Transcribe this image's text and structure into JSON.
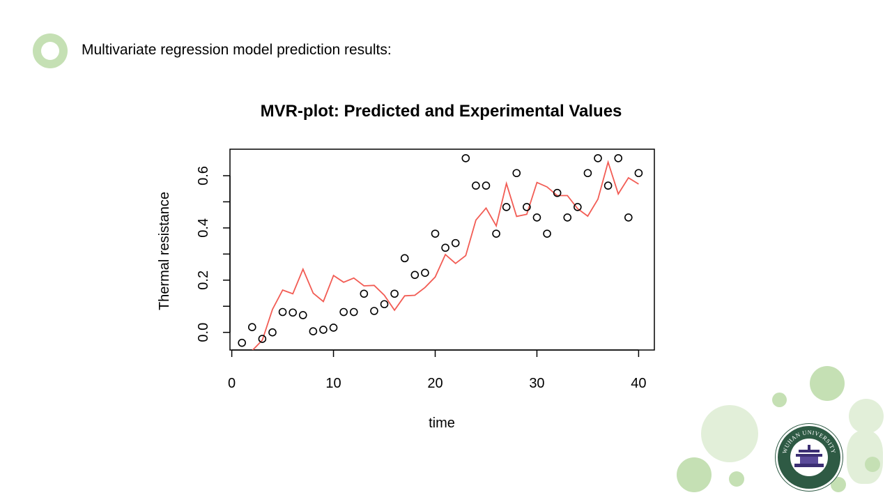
{
  "slide": {
    "heading": "Multivariate regression model prediction results:",
    "logo_text": "WUHAN UNIVERSITY",
    "colors": {
      "bullet": "#c5e0b4",
      "bubble_light": "#e2efd9",
      "bubble_mid": "#c5e0b4",
      "logo": "#2e5a44"
    }
  },
  "chart_data": {
    "type": "scatter",
    "title": "MVR-plot: Predicted and Experimental Values",
    "xlabel": "time",
    "ylabel": "Thermal resistance",
    "xlim": [
      0,
      42
    ],
    "ylim": [
      -0.07,
      0.7
    ],
    "x_ticks": [
      0,
      10,
      20,
      30,
      40
    ],
    "y_ticks": [
      0.0,
      0.2,
      0.4,
      0.6
    ],
    "y_tick_labels": [
      "0.0",
      "0.2",
      "0.4",
      "0.6"
    ],
    "grid": false,
    "series": [
      {
        "kind": "points",
        "color": "#000000",
        "x": [
          1,
          2,
          3,
          4,
          5,
          6,
          7,
          8,
          9,
          10,
          11,
          12,
          13,
          14,
          15,
          16,
          17,
          18,
          19,
          20,
          21,
          22,
          23,
          24,
          25,
          26,
          27,
          28,
          29,
          30,
          31,
          32,
          33,
          34,
          35,
          36,
          37,
          38,
          39,
          40
        ],
        "values": [
          -0.04,
          0.02,
          -0.025,
          0.0,
          0.078,
          0.076,
          0.066,
          0.004,
          0.01,
          0.018,
          0.078,
          0.078,
          0.148,
          0.082,
          0.108,
          0.148,
          0.284,
          0.22,
          0.228,
          0.378,
          0.324,
          0.342,
          0.667,
          0.562,
          0.562,
          0.378,
          0.48,
          0.61,
          0.48,
          0.44,
          0.378,
          0.534,
          0.44,
          0.48,
          0.61,
          0.667,
          0.562,
          0.667,
          0.44,
          0.61
        ]
      },
      {
        "kind": "line",
        "color": "#f25c54",
        "x": [
          1,
          2,
          3,
          4,
          5,
          6,
          7,
          8,
          9,
          10,
          11,
          12,
          13,
          14,
          15,
          16,
          17,
          18,
          19,
          20,
          21,
          22,
          23,
          24,
          25,
          26,
          27,
          28,
          29,
          30,
          31,
          32,
          33,
          34,
          35,
          36,
          37,
          38,
          39,
          40
        ],
        "values": [
          -0.09,
          -0.07,
          -0.03,
          0.088,
          0.162,
          0.148,
          0.242,
          0.15,
          0.118,
          0.218,
          0.192,
          0.208,
          0.178,
          0.18,
          0.142,
          0.085,
          0.14,
          0.142,
          0.172,
          0.212,
          0.298,
          0.264,
          0.294,
          0.43,
          0.476,
          0.408,
          0.57,
          0.444,
          0.452,
          0.574,
          0.557,
          0.524,
          0.524,
          0.474,
          0.445,
          0.51,
          0.652,
          0.53,
          0.592,
          0.568
        ]
      }
    ]
  }
}
